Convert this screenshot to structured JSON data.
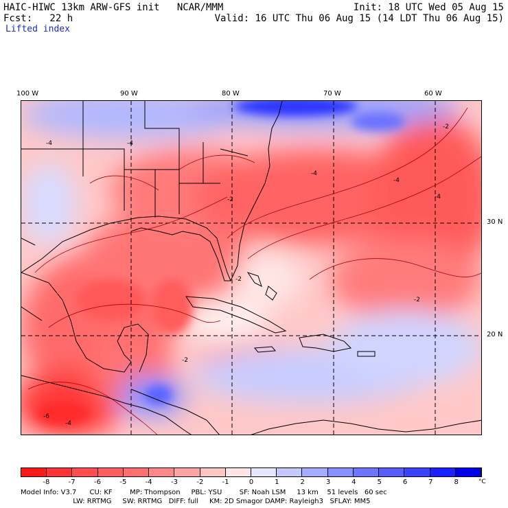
{
  "header": {
    "model_line": "HAIC-HIWC 13km ARW-GFS init   NCAR/MMM",
    "init_line": "Init: 18 UTC Wed 05 Aug 15",
    "fcst_line": "Fcst:   22 h",
    "valid_line": "Valid: 16 UTC Thu 06 Aug 15 (14 LDT Thu 06 Aug 15)",
    "field_name": "Lifted index"
  },
  "longitudes": [
    "100 W",
    "90 W",
    "80 W",
    "70 W",
    "60 W"
  ],
  "latitudes": [
    "30 N",
    "20 N"
  ],
  "colorbar": {
    "ticks": [
      "-8",
      "-7",
      "-6",
      "-5",
      "-4",
      "-3",
      "-2",
      "-1",
      "0",
      "1",
      "2",
      "3",
      "4",
      "5",
      "6",
      "7",
      "8"
    ],
    "unit": "°C",
    "colors": [
      "#ff1a1a",
      "#ff3333",
      "#ff4d4d",
      "#ff5e5e",
      "#ff7070",
      "#ff8888",
      "#ffa4a4",
      "#ffc6c6",
      "#ffe6e6",
      "#e6e6ff",
      "#c4c8ff",
      "#a6acff",
      "#8890ff",
      "#6e76ff",
      "#565eff",
      "#3a44ff",
      "#1a22ff",
      "#0000e6"
    ]
  },
  "map_labels": {
    "contour_values": [
      "-4",
      "-4",
      "-4",
      "-2",
      "-4",
      "-2",
      "-4",
      "-2",
      "-6",
      "-4",
      "-2",
      "-2"
    ]
  },
  "model_info": {
    "line1": "Model Info: V3.7      CU: KF        MP: Thompson     PBL: YSU        SF: Noah LSM     13 km    51 levels   60 sec",
    "line2": "                        LW: RRTMG     SW: RRTMG   DIFF: full     KM: 2D Smagor DAMP: Rayleigh3   SFLAY: MM5"
  }
}
